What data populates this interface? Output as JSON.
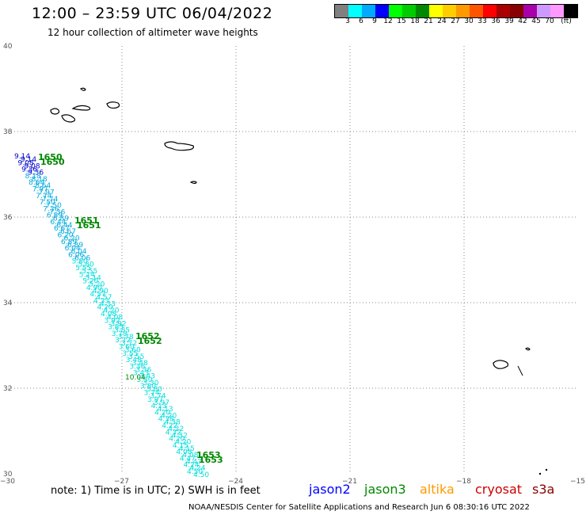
{
  "title": "12:00 – 23:59 UTC 06/04/2022",
  "subtitle": "12 hour collection of altimeter wave heights",
  "legend": {
    "unit": "(ft)",
    "colors": [
      "#808080",
      "#00ffff",
      "#00aaff",
      "#0000ff",
      "#00ff00",
      "#00cc00",
      "#008800",
      "#ffff00",
      "#ffcc00",
      "#ff9900",
      "#ff5500",
      "#ff0000",
      "#aa0000",
      "#880000",
      "#aa00aa",
      "#cc99ff",
      "#ff99ff",
      "#000000"
    ],
    "labels": [
      "3",
      "6",
      "9",
      "12",
      "15",
      "18",
      "21",
      "24",
      "27",
      "30",
      "33",
      "36",
      "39",
      "42",
      "45",
      "70"
    ]
  },
  "axes": {
    "lat_labels": [
      "40",
      "38",
      "36",
      "34",
      "32",
      "30"
    ],
    "lon_labels": [
      "−30",
      "−27",
      "−24",
      "−21",
      "−18",
      "−15"
    ]
  },
  "map_data": {
    "lon_range": [
      -30,
      -15
    ],
    "lat_range": [
      30,
      40
    ],
    "track_values": [
      "9.14",
      "9.08",
      "9.36",
      "8.18",
      "8.64",
      "7.97",
      "7.74",
      "7.50",
      "7.36",
      "6.89",
      "6.44",
      "6.67",
      "6.20",
      "6.89",
      "6.04",
      "6.06",
      "5.80",
      "5.55",
      "5.14",
      "5.20",
      "4.90",
      "4.57",
      "4.33",
      "4.20",
      "4.08",
      "3.92",
      "3.85",
      "3.78",
      "3.72",
      "3.60",
      "3.55",
      "3.48",
      "3.36",
      "3.43",
      "3.30",
      "3.80",
      "3.74",
      "3.97",
      "4.13",
      "4.20",
      "4.38",
      "4.22",
      "4.32",
      "4.20",
      "4.15",
      "4.08",
      "4.47",
      "4.24",
      "4.50"
    ],
    "highlight_value": "10.04",
    "time_labels": [
      "1650",
      "1651",
      "1652",
      "1653"
    ]
  },
  "note": "note:  1) Time is in UTC;  2) SWH is in feet",
  "satellites": [
    {
      "name": "jason2",
      "color": "#0000ff"
    },
    {
      "name": "jason3",
      "color": "#008800"
    },
    {
      "name": "altika",
      "color": "#ff9900"
    },
    {
      "name": "cryosat",
      "color": "#cc0000"
    },
    {
      "name": "s3a",
      "color": "#880000"
    }
  ],
  "credit": "NOAA/NESDIS Center for Satellite Applications and Research    Jun  6 08:30:16 UTC 2022"
}
